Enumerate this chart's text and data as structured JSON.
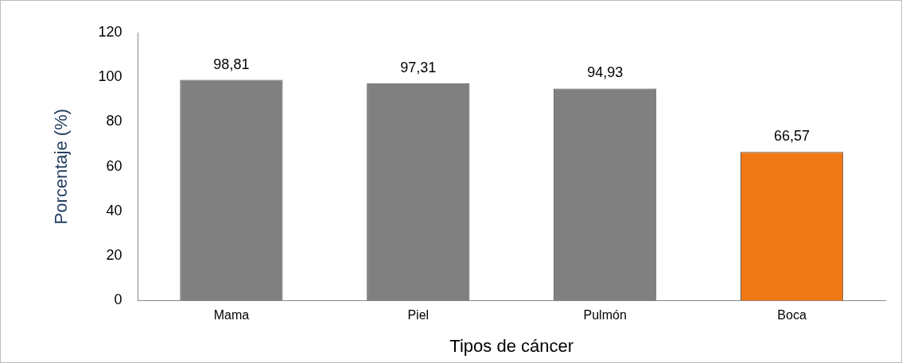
{
  "chart_data": {
    "type": "bar",
    "xlabel": "Tipos de cáncer",
    "ylabel": "Porcentaje (%)",
    "categories": [
      "Mama",
      "Piel",
      "Pulmón",
      "Boca"
    ],
    "values": [
      98.81,
      97.31,
      94.93,
      66.57
    ],
    "colors": [
      "#808080",
      "#808080",
      "#808080",
      "#f07814"
    ],
    "value_labels": [
      "98,81",
      "97,31",
      "94,93",
      "66,57"
    ],
    "ylim": [
      0,
      120
    ],
    "yticks": [
      0,
      20,
      40,
      60,
      80,
      100,
      120
    ],
    "grid": false,
    "legend": false
  }
}
